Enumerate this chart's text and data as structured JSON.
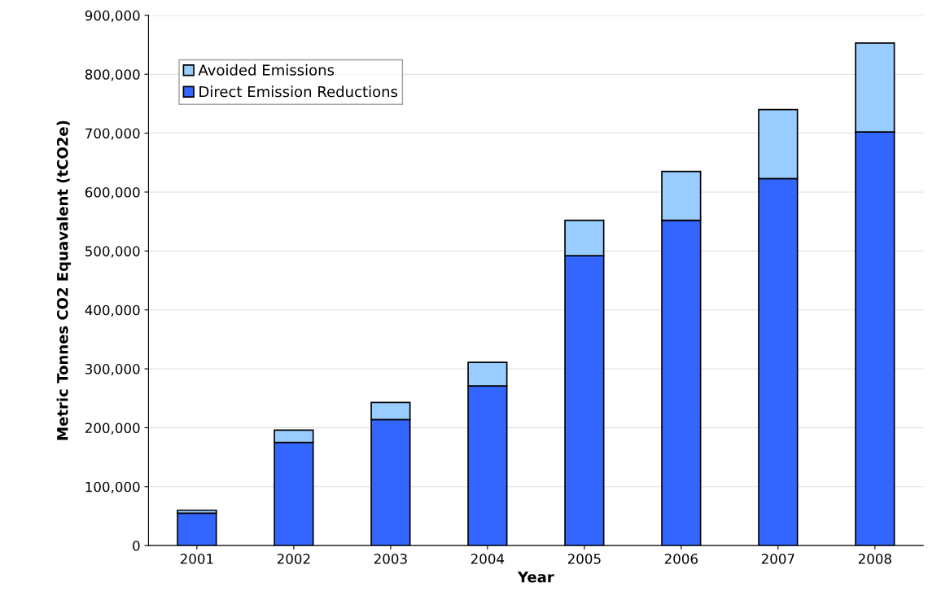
{
  "chart_data": {
    "type": "bar",
    "stacked": true,
    "xlabel": "Year",
    "ylabel": "Metric Tonnes CO2 Equavalent (tCO2e)",
    "categories": [
      "2001",
      "2002",
      "2003",
      "2004",
      "2005",
      "2006",
      "2007",
      "2008"
    ],
    "series": [
      {
        "name": "Direct Emission Reductions",
        "color": "#3366ff",
        "values": [
          55000,
          175000,
          214000,
          271000,
          492000,
          552000,
          623000,
          702000
        ]
      },
      {
        "name": "Avoided Emissions",
        "color": "#99ccff",
        "values": [
          5000,
          21000,
          29000,
          40000,
          60000,
          83000,
          117000,
          151000
        ]
      }
    ],
    "ylim": [
      0,
      900000
    ],
    "yticks": [
      0,
      {
        "value": 100000,
        "label": "100,000"
      },
      {
        "value": 200000,
        "label": "200,000"
      },
      {
        "value": 300000,
        "label": "300,000"
      },
      {
        "value": 400000,
        "label": "400,000"
      },
      {
        "value": 500000,
        "label": "500,000"
      },
      {
        "value": 600000,
        "label": "600,000"
      },
      {
        "value": 700000,
        "label": "700,000"
      },
      {
        "value": 800000,
        "label": "800,000"
      },
      {
        "value": 900000,
        "label": "900,000"
      }
    ],
    "grid": "y",
    "legend": "top left"
  }
}
